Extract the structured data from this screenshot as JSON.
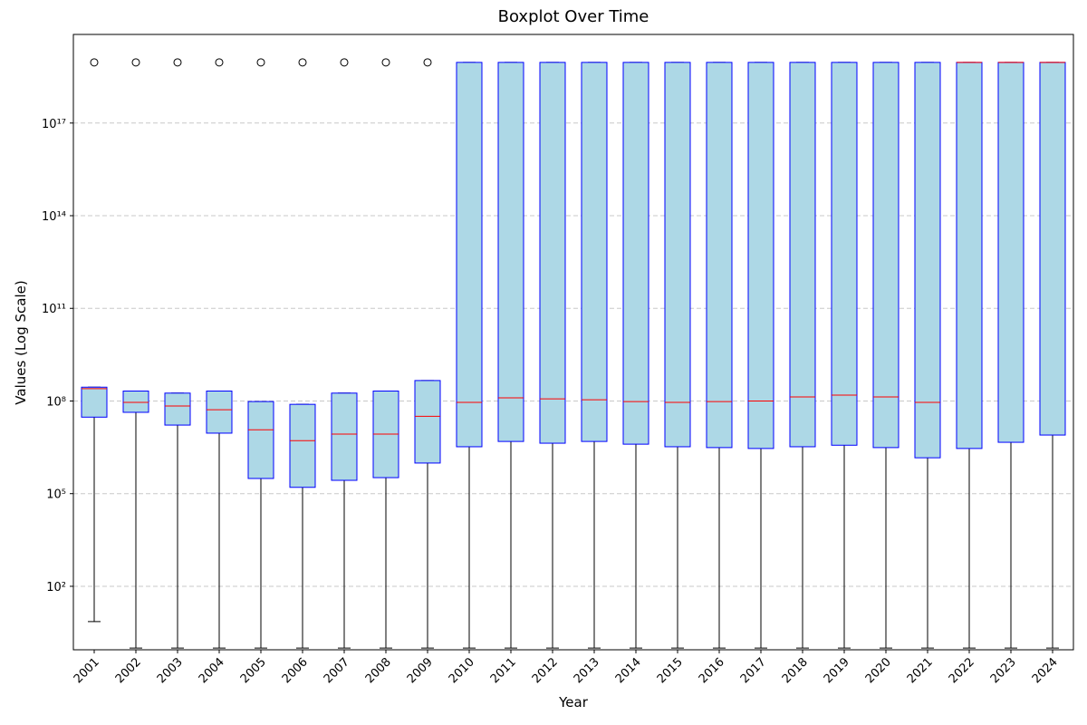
{
  "chart_data": {
    "type": "box",
    "title": "Boxplot Over Time",
    "x_label": "Year",
    "y_label": "Values (Log Scale)",
    "categories": [
      "2001",
      "2002",
      "2003",
      "2004",
      "2005",
      "2006",
      "2007",
      "2008",
      "2009",
      "2010",
      "2011",
      "2012",
      "2013",
      "2014",
      "2015",
      "2016",
      "2017",
      "2018",
      "2019",
      "2020",
      "2021",
      "2022",
      "2023",
      "2024"
    ],
    "whisker_low": [
      7.2,
      1,
      1,
      1,
      1,
      1,
      1,
      1,
      1,
      1,
      1,
      1,
      1,
      1,
      1,
      1,
      1,
      1,
      1,
      1,
      1,
      1,
      1,
      1
    ],
    "q1": [
      30000000.0,
      43000000.0,
      16600000.0,
      9100000.0,
      310000.0,
      160000.0,
      270000.0,
      330000.0,
      980000.0,
      3300000.0,
      4900000.0,
      4300000.0,
      4900000.0,
      4000000.0,
      3300000.0,
      3100000.0,
      2900000.0,
      3300000.0,
      3700000.0,
      3100000.0,
      1450000.0,
      2900000.0,
      4600000.0,
      7900000.0
    ],
    "median": [
      250000000.0,
      90000000.0,
      69000000.0,
      52000000.0,
      11700000.0,
      5200000.0,
      8500000.0,
      8500000.0,
      32000000.0,
      90000000.0,
      126000000.0,
      117000000.0,
      110000000.0,
      96000000.0,
      90000000.0,
      96000000.0,
      100000000.0,
      135000000.0,
      155000000.0,
      135000000.0,
      90000000.0,
      9.2e+18,
      9.2e+18,
      9.2e+18
    ],
    "q3": [
      280000000.0,
      210000000.0,
      180000000.0,
      210000000.0,
      96000000.0,
      78000000.0,
      180000000.0,
      210000000.0,
      460000000.0,
      9.2e+18,
      9.2e+18,
      9.2e+18,
      9.2e+18,
      9.2e+18,
      9.2e+18,
      9.2e+18,
      9.2e+18,
      9.2e+18,
      9.2e+18,
      9.2e+18,
      9.2e+18,
      9.2e+18,
      9.2e+18,
      9.2e+18
    ],
    "whisker_high": [
      280000000.0,
      210000000.0,
      180000000.0,
      210000000.0,
      96000000.0,
      78000000.0,
      180000000.0,
      210000000.0,
      460000000.0,
      9.2e+18,
      9.2e+18,
      9.2e+18,
      9.2e+18,
      9.2e+18,
      9.2e+18,
      9.2e+18,
      9.2e+18,
      9.2e+18,
      9.2e+18,
      9.2e+18,
      9.2e+18,
      9.2e+18,
      9.2e+18,
      9.2e+18
    ],
    "outliers": [
      9.2e+18,
      9.2e+18,
      9.2e+18,
      9.2e+18,
      9.2e+18,
      9.2e+18,
      9.2e+18,
      9.2e+18,
      9.2e+18,
      null,
      null,
      null,
      null,
      null,
      null,
      null,
      null,
      null,
      null,
      null,
      null,
      null,
      null,
      null
    ],
    "box_color": "#add8e6",
    "edge_color": "#0000ff",
    "median_color": "#ff0000",
    "whisker_color": "#000000",
    "log_scale": true,
    "grid": true,
    "ylim": [
      0.88,
      7.4e+19
    ],
    "yticks": [
      {
        "value": 100,
        "label": "10²"
      },
      {
        "value": 100000,
        "label": "10⁵"
      },
      {
        "value": 100000000,
        "label": "10⁸"
      },
      {
        "value": 100000000000,
        "label": "10¹¹"
      },
      {
        "value": 100000000000000,
        "label": "10¹⁴"
      },
      {
        "value": 100000000000000000,
        "label": "10¹⁷"
      }
    ]
  }
}
